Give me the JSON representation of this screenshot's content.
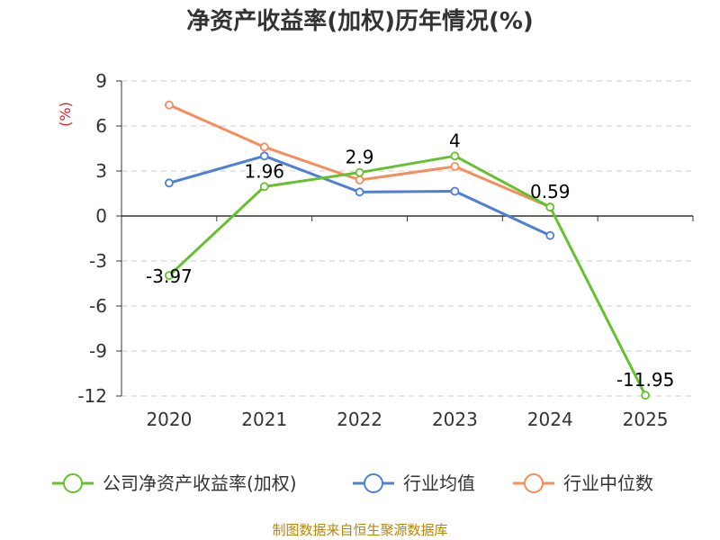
{
  "chart_data": {
    "type": "line",
    "title": "净资产收益率(加权)历年情况(%)",
    "ylabel": "(%)",
    "xlabel": "",
    "categories": [
      "2020",
      "2021",
      "2022",
      "2023",
      "2024",
      "2025"
    ],
    "ylim": [
      -12,
      9
    ],
    "yticks": [
      9,
      6,
      3,
      0,
      -3,
      -6,
      -9,
      -12
    ],
    "grid": "horizontal-dashed",
    "series": [
      {
        "name": "公司净资产收益率(加权)",
        "color": "#66c12e",
        "values": [
          -3.97,
          1.96,
          2.9,
          4,
          0.59,
          -11.95
        ],
        "labels": [
          "-3.97",
          "1.96",
          "2.9",
          "4",
          "0.59",
          "-11.95"
        ]
      },
      {
        "name": "行业均值",
        "color": "#4e7fd7",
        "values": [
          2.2,
          4.0,
          1.6,
          1.65,
          -1.3,
          null
        ]
      },
      {
        "name": "行业中位数",
        "color": "#f78c5c",
        "values": [
          7.4,
          4.6,
          2.4,
          3.3,
          0.6,
          null
        ]
      }
    ],
    "legend_position": "bottom",
    "source": "制图数据来自恒生聚源数据库"
  }
}
